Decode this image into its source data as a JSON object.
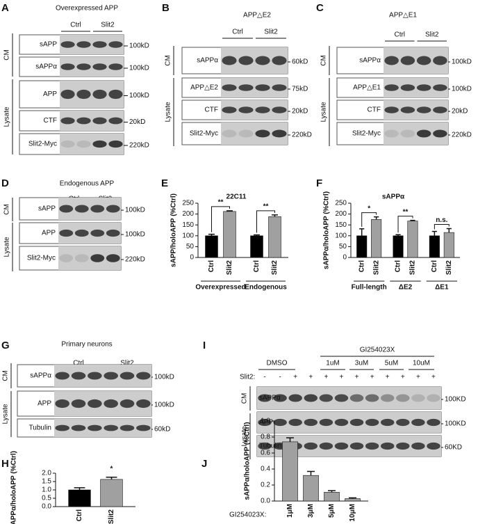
{
  "blots": [
    {
      "letter": "A",
      "title": "Overexpressed APP",
      "conditions": [
        "Ctrl",
        "Slit2"
      ],
      "sections": [
        "CM",
        "Lysate"
      ],
      "rows": [
        "sAPP",
        "sAPPα",
        "APP",
        "CTF",
        "Slit2-Myc"
      ],
      "markers": [
        "100kD",
        "100kD",
        "100kD",
        "20kD",
        "220kD"
      ]
    },
    {
      "letter": "B",
      "title": "APP△E2",
      "conditions": [
        "Ctrl",
        "Slit2"
      ],
      "sections": [
        "CM",
        "Lysate"
      ],
      "rows": [
        "sAPPα",
        "APP△E2",
        "CTF",
        "Slit2-Myc"
      ],
      "markers": [
        "60kD",
        "75kD",
        "20kD",
        "220kD"
      ]
    },
    {
      "letter": "C",
      "title": "APP△E1",
      "conditions": [
        "Ctrl",
        "Slit2"
      ],
      "sections": [
        "CM",
        "Lysate"
      ],
      "rows": [
        "sAPPα",
        "APP△E1",
        "CTF",
        "Slit2-Myc"
      ],
      "markers": [
        "100kD",
        "100kD",
        "20kD",
        "220kD"
      ]
    },
    {
      "letter": "D",
      "title": "Endogenous APP",
      "conditions": [
        "Ctrl",
        "Slit2"
      ],
      "sections": [
        "CM",
        "Lysate"
      ],
      "rows": [
        "sAPP",
        "APP",
        "Slit2-Myc"
      ],
      "markers": [
        "100kD",
        "100kD",
        "220kD"
      ]
    },
    {
      "letter": "G",
      "title": "Primary neurons",
      "conditions": [
        "Ctrl",
        "Slit2"
      ],
      "sections": [
        "CM",
        "Lysate"
      ],
      "rows": [
        "sAPPα",
        "APP",
        "Tubulin"
      ],
      "markers": [
        "100kD",
        "100kD",
        "60kD"
      ]
    },
    {
      "letter": "I",
      "inhibitor": "GI254023X",
      "conditions": [
        "DMSO",
        "1uM",
        "3uM",
        "5uM",
        "10uM"
      ],
      "slit_label": "Slit2:",
      "slit_signs": [
        "-",
        "-",
        "+",
        "+",
        "+",
        "+",
        "+",
        "+",
        "+",
        "+",
        "+",
        "+"
      ],
      "sections": [
        "CM",
        "Lysate"
      ],
      "rows": [
        "sAPPα",
        "APP",
        "Tubulin"
      ],
      "markers": [
        "100KD",
        "100KD",
        "60KD"
      ]
    }
  ],
  "chart_data": [
    {
      "type": "bar",
      "letter": "E",
      "title": "22C11",
      "y_label": "sAPP/holoAPP (%Ctrl)",
      "categories": [
        "Ctrl",
        "Slit2",
        "Ctrl",
        "Slit2"
      ],
      "groups": [
        "Overexpressed",
        "Endogenous"
      ],
      "values": [
        100,
        212,
        100,
        188
      ],
      "errors": [
        7,
        3,
        4,
        8
      ],
      "colors": [
        "#000000",
        "#a0a0a0",
        "#000000",
        "#a0a0a0"
      ],
      "ylim": [
        0,
        250
      ],
      "yticks": [
        0,
        50,
        100,
        150,
        200,
        250
      ],
      "annotations": [
        "**",
        "**"
      ]
    },
    {
      "type": "bar",
      "letter": "F",
      "title": "sAPPα",
      "y_label": "sAPPα/holoAPP (%Ctrl)",
      "categories": [
        "Ctrl",
        "Slit2",
        "Ctrl",
        "Slit2",
        "Ctrl",
        "Slit2"
      ],
      "groups": [
        "Full-length",
        "ΔE2",
        "ΔE1"
      ],
      "values": [
        100,
        175,
        100,
        168,
        100,
        115
      ],
      "errors": [
        32,
        12,
        5,
        3,
        20,
        18
      ],
      "colors": [
        "#000000",
        "#a0a0a0",
        "#000000",
        "#a0a0a0",
        "#000000",
        "#a0a0a0"
      ],
      "ylim": [
        0,
        250
      ],
      "yticks": [
        0,
        50,
        100,
        150,
        200,
        250
      ],
      "annotations": [
        "*",
        "**",
        "n.s."
      ]
    },
    {
      "type": "bar",
      "letter": "H",
      "y_label": "sAPPα/holoAPP (%Ctrl)",
      "categories": [
        "Ctrl",
        "Slit2"
      ],
      "values": [
        1.0,
        1.63
      ],
      "errors": [
        0.13,
        0.13
      ],
      "colors": [
        "#000000",
        "#a0a0a0"
      ],
      "ylim": [
        0,
        2.0
      ],
      "yticks": [
        {
          "value": 0,
          "label": "0.0"
        },
        0.5,
        {
          "value": 1,
          "label": "1.0"
        },
        1.5,
        {
          "value": 2,
          "label": "2.0"
        }
      ],
      "annotations": [
        "*"
      ]
    },
    {
      "type": "bar",
      "letter": "J",
      "y_label": "sAPPα/holoAPP (%Ctrl)",
      "x_label": "GI254023X:",
      "categories": [
        "1μM",
        "3μM",
        "5μM",
        "10μM"
      ],
      "values": [
        0.74,
        0.32,
        0.11,
        0.03
      ],
      "errors": [
        0.05,
        0.05,
        0.02,
        0.01
      ],
      "colors": [
        "#a0a0a0",
        "#a0a0a0",
        "#a0a0a0",
        "#a0a0a0"
      ],
      "ylim": [
        0,
        1.0
      ],
      "yticks": [
        {
          "value": 0,
          "label": "0.0"
        },
        0.2,
        0.4,
        0.6,
        0.8,
        {
          "value": 1,
          "label": "1.0"
        }
      ],
      "annotations": []
    }
  ]
}
